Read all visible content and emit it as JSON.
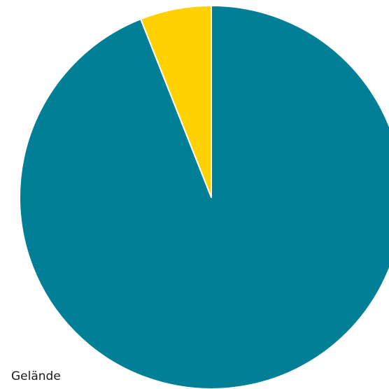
{
  "chart_data": {
    "type": "pie",
    "title": "",
    "legend": false,
    "slices": [
      {
        "label": "",
        "value": 94,
        "color": "#007f96"
      },
      {
        "label": "",
        "value": 6,
        "color": "#ffd100"
      }
    ],
    "annotations": [
      {
        "text": "Gelände"
      }
    ]
  }
}
